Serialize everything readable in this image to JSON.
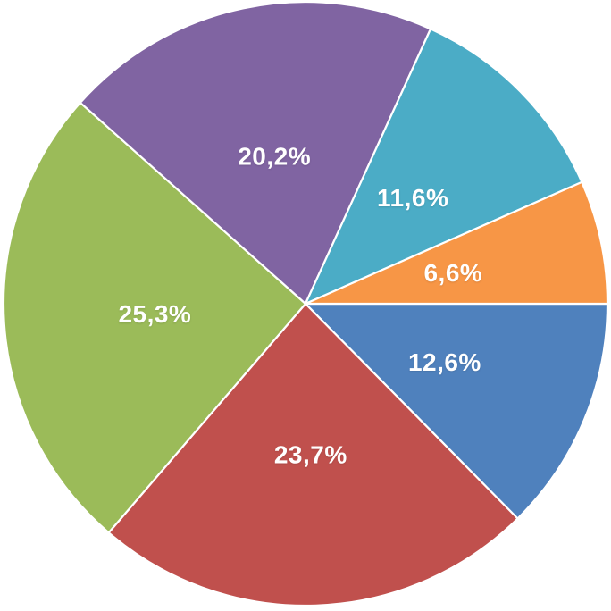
{
  "page": {
    "background_color": "#ffffff"
  },
  "chart_data": {
    "type": "pie",
    "title": "",
    "legend": "none",
    "unit": "%",
    "decimal_separator": ",",
    "start_angle_deg": 0,
    "direction": "clockwise",
    "label_position": "inside",
    "label_radius_ratio": 0.5,
    "label_color": "#ffffff",
    "slice_border_color": "#ffffff",
    "slices": [
      {
        "name": "blue",
        "label": "12,6%",
        "value": 12.6,
        "color": "#4F81BD"
      },
      {
        "name": "red",
        "label": "23,7%",
        "value": 23.7,
        "color": "#C0504D"
      },
      {
        "name": "green",
        "label": "25,3%",
        "value": 25.3,
        "color": "#9BBB59"
      },
      {
        "name": "purple",
        "label": "20,2%",
        "value": 20.2,
        "color": "#8064A2"
      },
      {
        "name": "teal",
        "label": "11,6%",
        "value": 11.6,
        "color": "#4BACC6"
      },
      {
        "name": "orange",
        "label": "6,6%",
        "value": 6.6,
        "color": "#F79646"
      }
    ]
  }
}
